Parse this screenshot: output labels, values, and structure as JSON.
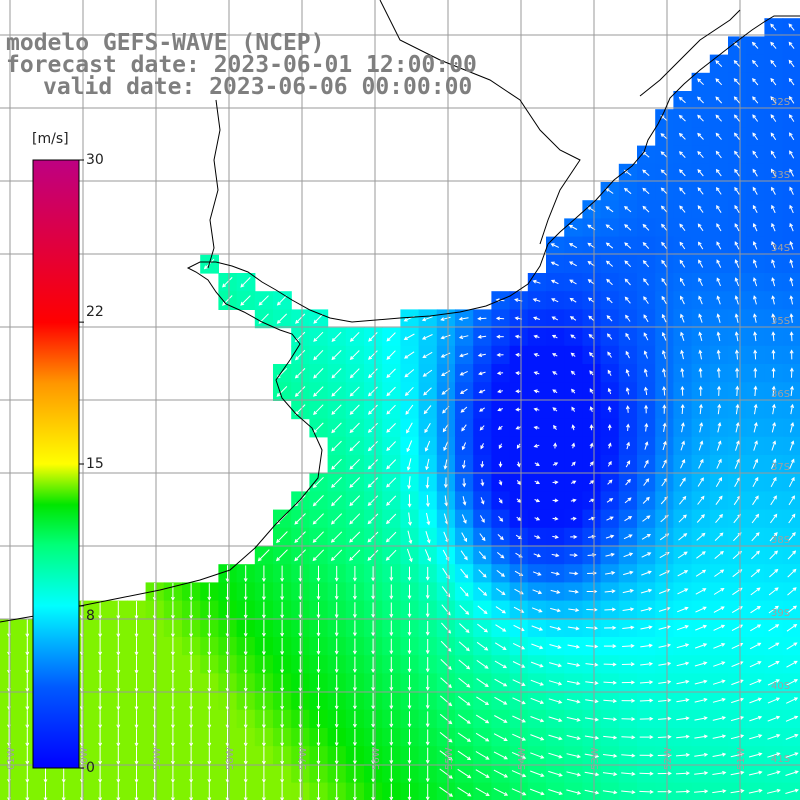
{
  "title": {
    "line1": "modelo GEFS-WAVE (NCEP)",
    "line2": "forecast date: 2023-06-01 12:00:00",
    "line3": "valid date: 2023-06-06 00:00:00"
  },
  "colorbar": {
    "unit": "[m/s]",
    "min": 0,
    "max": 30,
    "tick_labels": [
      "30",
      "22",
      "15",
      "8",
      "0"
    ],
    "tick_values": [
      30,
      22,
      15,
      8,
      0
    ],
    "colors": [
      "#0000ff",
      "#00a0ff",
      "#00ffff",
      "#00ff00",
      "#ffff00",
      "#ff8000",
      "#ff0000",
      "#c00080"
    ]
  },
  "map": {
    "lat_labels": [
      "32S",
      "33S",
      "34S",
      "35S",
      "36S",
      "37S",
      "38S",
      "39S",
      "40S",
      "41S"
    ],
    "lon_labels": [
      "61W",
      "60W",
      "59W",
      "58W",
      "57W",
      "56W",
      "55W",
      "54W",
      "53W",
      "52W",
      "51W"
    ],
    "land_color": "#ffffff",
    "grid_color": "#9a9a9a",
    "coast_color": "#000000"
  }
}
